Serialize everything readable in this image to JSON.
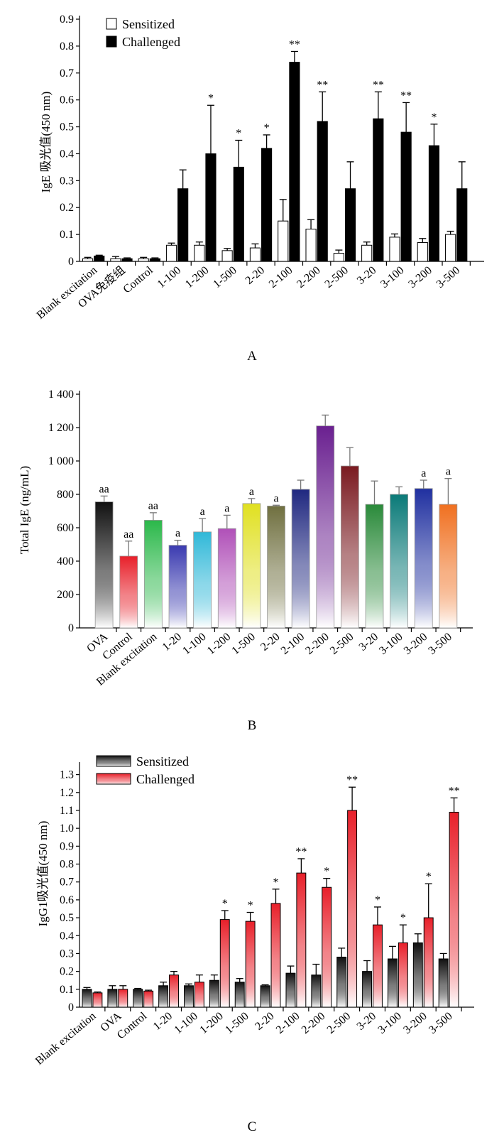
{
  "chart_data": [
    {
      "type": "bar",
      "panel_label": "A",
      "ylabel": "IgE 吸光值(450 nm)",
      "xlabel": "",
      "ylim": [
        0,
        0.9
      ],
      "yticks": [
        0,
        0.1,
        0.2,
        0.3,
        0.4,
        0.5,
        0.6,
        0.7,
        0.8,
        0.9
      ],
      "ytick_labels": [
        "0",
        "0.1",
        "0.2",
        "0.3",
        "0.4",
        "0.5",
        "0.6",
        "0.7",
        "0.8",
        "0.9"
      ],
      "legend_position": "top-left",
      "grid": false,
      "categories": [
        "Blank excitation",
        "OVA免疫组",
        "Control",
        "1-100",
        "1-200",
        "1-500",
        "2-20",
        "2-100",
        "2-200",
        "2-500",
        "3-20",
        "3-100",
        "3-200",
        "3-500"
      ],
      "series": [
        {
          "name": "Sensitized",
          "color": "#ffffff",
          "values": [
            0.01,
            0.01,
            0.01,
            0.06,
            0.06,
            0.04,
            0.05,
            0.15,
            0.12,
            0.03,
            0.06,
            0.09,
            0.07,
            0.1
          ],
          "errors": [
            0.005,
            0.008,
            0.005,
            0.008,
            0.012,
            0.008,
            0.015,
            0.08,
            0.035,
            0.012,
            0.012,
            0.012,
            0.015,
            0.012
          ],
          "annotations": [
            "",
            "",
            "",
            "",
            "",
            "",
            "",
            "",
            "",
            "",
            "",
            "",
            "",
            ""
          ]
        },
        {
          "name": "Challenged",
          "color": "#000000",
          "values": [
            0.02,
            0.01,
            0.01,
            0.27,
            0.4,
            0.35,
            0.42,
            0.74,
            0.52,
            0.27,
            0.53,
            0.48,
            0.43,
            0.27
          ],
          "errors": [
            0.003,
            0.003,
            0.003,
            0.07,
            0.18,
            0.1,
            0.05,
            0.04,
            0.11,
            0.1,
            0.1,
            0.11,
            0.08,
            0.1
          ],
          "annotations": [
            "",
            "",
            "",
            "",
            "*",
            "*",
            "*",
            "**",
            "**",
            "",
            "**",
            "**",
            "*",
            ""
          ]
        }
      ]
    },
    {
      "type": "bar",
      "panel_label": "B",
      "ylabel": "Total IgE (ng/mL)",
      "xlabel": "",
      "ylim": [
        0,
        1400
      ],
      "yticks": [
        0,
        200,
        400,
        600,
        800,
        1000,
        1200,
        1400
      ],
      "ytick_labels": [
        "0",
        "200",
        "400",
        "600",
        "800",
        "1 000",
        "1 200",
        "1 400"
      ],
      "grid": false,
      "categories": [
        "OVA",
        "Control",
        "Blank excitation",
        "1-20",
        "1-100",
        "1-200",
        "1-500",
        "2-20",
        "2-100",
        "2-200",
        "2-500",
        "3-20",
        "3-100",
        "3-200",
        "3-500"
      ],
      "values": [
        755,
        430,
        645,
        495,
        575,
        595,
        745,
        730,
        830,
        1210,
        970,
        740,
        800,
        835,
        740
      ],
      "errors": [
        35,
        90,
        45,
        30,
        80,
        80,
        30,
        5,
        55,
        65,
        110,
        140,
        45,
        50,
        155
      ],
      "annotations": [
        "aa",
        "aa",
        "aa",
        "a",
        "a",
        "a",
        "a",
        "a",
        "",
        "",
        "",
        "",
        "",
        "a",
        "a"
      ],
      "colors": [
        "#111111",
        "#e8202a",
        "#2bb84a",
        "#3a3ab0",
        "#30b8d8",
        "#b050b8",
        "#e0e020",
        "#707040",
        "#202880",
        "#6a2090",
        "#7a1a20",
        "#2a8a3a",
        "#0a7a78",
        "#2030a0",
        "#f07020"
      ]
    },
    {
      "type": "bar",
      "panel_label": "C",
      "ylabel": "IgG1吸光值(450 nm)",
      "xlabel": "",
      "ylim": [
        0,
        1.35
      ],
      "yticks": [
        0,
        0.1,
        0.2,
        0.3,
        0.4,
        0.5,
        0.6,
        0.7,
        0.8,
        0.9,
        1.0,
        1.1,
        1.2,
        1.3
      ],
      "ytick_labels": [
        "0",
        "0.1",
        "0.2",
        "0.3",
        "0.4",
        "0.5",
        "0.6",
        "0.7",
        "0.8",
        "0.9",
        "1.0",
        "1.1",
        "1.2",
        "1.3"
      ],
      "legend_position": "top-left",
      "grid": false,
      "categories": [
        "Blank excitation",
        "OVA",
        "Control",
        "1-20",
        "1-100",
        "1-200",
        "1-500",
        "2-20",
        "2-100",
        "2-200",
        "2-500",
        "3-20",
        "3-100",
        "3-200",
        "3-500"
      ],
      "series": [
        {
          "name": "Sensitized",
          "color": "#111111",
          "values": [
            0.1,
            0.1,
            0.1,
            0.12,
            0.12,
            0.15,
            0.14,
            0.12,
            0.19,
            0.18,
            0.28,
            0.2,
            0.27,
            0.36,
            0.27
          ],
          "errors": [
            0.01,
            0.02,
            0.005,
            0.02,
            0.01,
            0.03,
            0.02,
            0.005,
            0.04,
            0.06,
            0.05,
            0.06,
            0.07,
            0.05,
            0.03
          ],
          "annotations": [
            "",
            "",
            "",
            "",
            "",
            "",
            "",
            "",
            "",
            "",
            "",
            "",
            "",
            "",
            ""
          ]
        },
        {
          "name": "Challenged",
          "color": "#e8202a",
          "values": [
            0.08,
            0.1,
            0.09,
            0.18,
            0.14,
            0.49,
            0.48,
            0.58,
            0.75,
            0.67,
            1.1,
            0.46,
            0.36,
            0.5,
            1.09
          ],
          "errors": [
            0.005,
            0.02,
            0.005,
            0.02,
            0.04,
            0.05,
            0.05,
            0.08,
            0.08,
            0.05,
            0.13,
            0.1,
            0.1,
            0.19,
            0.08
          ],
          "annotations": [
            "",
            "",
            "",
            "",
            "",
            "*",
            "*",
            "*",
            "**",
            "*",
            "**",
            "*",
            "*",
            "*",
            "**"
          ]
        }
      ]
    }
  ]
}
